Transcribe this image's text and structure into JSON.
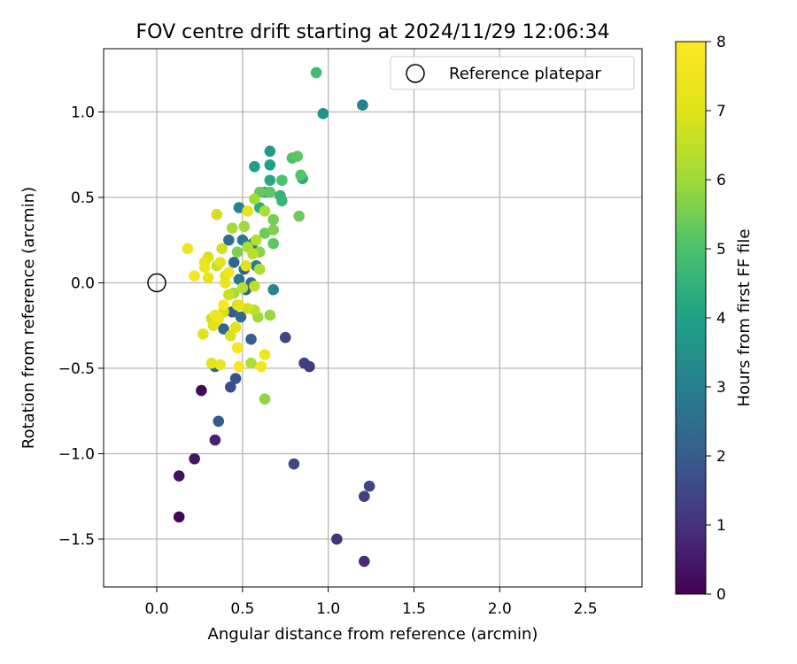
{
  "chart_data": {
    "type": "scatter",
    "title": "FOV centre drift starting at 2024/11/29 12:06:34",
    "xlabel": "Angular distance from reference (arcmin)",
    "ylabel": "Rotation from reference (arcmin)",
    "xlim": [
      -0.31,
      2.83
    ],
    "ylim": [
      -1.78,
      1.37
    ],
    "xticks": [
      0.0,
      0.5,
      1.0,
      1.5,
      2.0,
      2.5
    ],
    "xtick_labels": [
      "0.0",
      "0.5",
      "1.0",
      "1.5",
      "2.0",
      "2.5"
    ],
    "yticks": [
      -1.5,
      -1.0,
      -0.5,
      0.0,
      0.5,
      1.0
    ],
    "ytick_labels": [
      "−1.5",
      "−1.0",
      "−0.5",
      "0.0",
      "0.5",
      "1.0"
    ],
    "grid": true,
    "legend": {
      "position": "top-right",
      "entries": [
        "Reference platepar"
      ]
    },
    "reference_point": {
      "x": 0.0,
      "y": 0.0,
      "label": "Reference platepar"
    },
    "colorbar": {
      "label": "Hours from first FF file",
      "colormap": "viridis",
      "range": [
        0,
        8
      ],
      "ticks": [
        0,
        1,
        2,
        3,
        4,
        5,
        6,
        7,
        8
      ],
      "tick_labels": [
        "0",
        "1",
        "2",
        "3",
        "4",
        "5",
        "6",
        "7",
        "8"
      ]
    },
    "points": [
      {
        "x": 0.13,
        "y": -1.37,
        "t": 0.1
      },
      {
        "x": 0.13,
        "y": -1.13,
        "t": 0.3
      },
      {
        "x": 0.22,
        "y": -1.03,
        "t": 0.4
      },
      {
        "x": 0.26,
        "y": -0.63,
        "t": 0.2
      },
      {
        "x": 0.34,
        "y": -0.92,
        "t": 0.7
      },
      {
        "x": 1.05,
        "y": -1.5,
        "t": 1.0
      },
      {
        "x": 1.21,
        "y": -1.63,
        "t": 0.9
      },
      {
        "x": 1.21,
        "y": -1.25,
        "t": 1.3
      },
      {
        "x": 1.24,
        "y": -1.19,
        "t": 1.4
      },
      {
        "x": 0.8,
        "y": -1.06,
        "t": 1.5
      },
      {
        "x": 0.86,
        "y": -0.47,
        "t": 1.3
      },
      {
        "x": 0.89,
        "y": -0.49,
        "t": 1.2
      },
      {
        "x": 0.75,
        "y": -0.32,
        "t": 1.5
      },
      {
        "x": 0.43,
        "y": -0.61,
        "t": 1.7
      },
      {
        "x": 0.46,
        "y": -0.56,
        "t": 1.8
      },
      {
        "x": 0.36,
        "y": -0.81,
        "t": 2.0
      },
      {
        "x": 0.34,
        "y": -0.49,
        "t": 2.2
      },
      {
        "x": 0.55,
        "y": -0.33,
        "t": 2.1
      },
      {
        "x": 0.39,
        "y": -0.27,
        "t": 2.3
      },
      {
        "x": 0.49,
        "y": -0.2,
        "t": 2.4
      },
      {
        "x": 0.44,
        "y": -0.17,
        "t": 2.0
      },
      {
        "x": 0.52,
        "y": -0.04,
        "t": 2.3
      },
      {
        "x": 0.55,
        "y": 0.0,
        "t": 2.6
      },
      {
        "x": 0.48,
        "y": 0.02,
        "t": 2.7
      },
      {
        "x": 0.51,
        "y": 0.08,
        "t": 2.2
      },
      {
        "x": 0.45,
        "y": 0.12,
        "t": 2.4
      },
      {
        "x": 0.42,
        "y": 0.25,
        "t": 2.5
      },
      {
        "x": 0.5,
        "y": 0.25,
        "t": 2.8
      },
      {
        "x": 0.56,
        "y": 0.23,
        "t": 2.9
      },
      {
        "x": 0.48,
        "y": 0.44,
        "t": 3.1
      },
      {
        "x": 0.58,
        "y": 0.1,
        "t": 3.0
      },
      {
        "x": 0.68,
        "y": -0.04,
        "t": 3.2
      },
      {
        "x": 1.2,
        "y": 1.04,
        "t": 3.1
      },
      {
        "x": 0.97,
        "y": 0.99,
        "t": 3.6
      },
      {
        "x": 0.66,
        "y": 0.77,
        "t": 3.8
      },
      {
        "x": 0.57,
        "y": 0.68,
        "t": 3.9
      },
      {
        "x": 0.66,
        "y": 0.69,
        "t": 4.0
      },
      {
        "x": 0.66,
        "y": 0.6,
        "t": 4.2
      },
      {
        "x": 0.85,
        "y": 0.61,
        "t": 4.3
      },
      {
        "x": 0.63,
        "y": 0.53,
        "t": 4.4
      },
      {
        "x": 0.72,
        "y": 0.51,
        "t": 4.5
      },
      {
        "x": 0.73,
        "y": 0.48,
        "t": 4.6
      },
      {
        "x": 0.6,
        "y": 0.44,
        "t": 4.3
      },
      {
        "x": 0.93,
        "y": 1.23,
        "t": 4.8
      },
      {
        "x": 0.79,
        "y": 0.73,
        "t": 5.0
      },
      {
        "x": 0.82,
        "y": 0.74,
        "t": 5.2
      },
      {
        "x": 0.84,
        "y": 0.63,
        "t": 5.1
      },
      {
        "x": 0.73,
        "y": 0.6,
        "t": 5.0
      },
      {
        "x": 0.6,
        "y": 0.53,
        "t": 5.3
      },
      {
        "x": 0.66,
        "y": 0.53,
        "t": 5.2
      },
      {
        "x": 0.83,
        "y": 0.39,
        "t": 5.4
      },
      {
        "x": 0.68,
        "y": 0.37,
        "t": 5.5
      },
      {
        "x": 0.68,
        "y": 0.31,
        "t": 5.6
      },
      {
        "x": 0.63,
        "y": 0.29,
        "t": 5.4
      },
      {
        "x": 0.68,
        "y": 0.23,
        "t": 5.2
      },
      {
        "x": 0.6,
        "y": 0.18,
        "t": 5.7
      },
      {
        "x": 0.47,
        "y": 0.18,
        "t": 5.6
      },
      {
        "x": 0.57,
        "y": 0.49,
        "t": 6.0
      },
      {
        "x": 0.63,
        "y": 0.42,
        "t": 6.2
      },
      {
        "x": 0.51,
        "y": 0.33,
        "t": 6.0
      },
      {
        "x": 0.44,
        "y": 0.32,
        "t": 6.1
      },
      {
        "x": 0.58,
        "y": 0.25,
        "t": 6.3
      },
      {
        "x": 0.53,
        "y": 0.21,
        "t": 6.2
      },
      {
        "x": 0.56,
        "y": 0.17,
        "t": 6.4
      },
      {
        "x": 0.6,
        "y": 0.08,
        "t": 6.2
      },
      {
        "x": 0.57,
        "y": -0.02,
        "t": 6.5
      },
      {
        "x": 0.5,
        "y": -0.03,
        "t": 6.4
      },
      {
        "x": 0.45,
        "y": -0.06,
        "t": 6.1
      },
      {
        "x": 0.59,
        "y": -0.2,
        "t": 6.0
      },
      {
        "x": 0.66,
        "y": -0.19,
        "t": 5.9
      },
      {
        "x": 0.55,
        "y": -0.47,
        "t": 6.2
      },
      {
        "x": 0.63,
        "y": -0.68,
        "t": 5.8
      },
      {
        "x": 0.57,
        "y": -0.16,
        "t": 6.4
      },
      {
        "x": 0.47,
        "y": -0.13,
        "t": 6.6
      },
      {
        "x": 0.42,
        "y": -0.07,
        "t": 6.7
      },
      {
        "x": 0.53,
        "y": -0.15,
        "t": 6.8
      },
      {
        "x": 0.35,
        "y": 0.4,
        "t": 6.8
      },
      {
        "x": 0.3,
        "y": 0.15,
        "t": 6.9
      },
      {
        "x": 0.38,
        "y": 0.2,
        "t": 6.8
      },
      {
        "x": 0.35,
        "y": 0.1,
        "t": 6.6
      },
      {
        "x": 0.4,
        "y": 0.04,
        "t": 6.9
      },
      {
        "x": 0.32,
        "y": -0.21,
        "t": 6.7
      },
      {
        "x": 0.36,
        "y": -0.21,
        "t": 7.0
      },
      {
        "x": 0.39,
        "y": -0.17,
        "t": 6.8
      },
      {
        "x": 0.43,
        "y": -0.31,
        "t": 6.9
      },
      {
        "x": 0.27,
        "y": -0.3,
        "t": 7.0
      },
      {
        "x": 0.33,
        "y": -0.25,
        "t": 7.1
      },
      {
        "x": 0.46,
        "y": -0.26,
        "t": 7.0
      },
      {
        "x": 0.48,
        "y": -0.13,
        "t": 7.2
      },
      {
        "x": 0.53,
        "y": 0.42,
        "t": 7.3
      },
      {
        "x": 0.52,
        "y": 0.1,
        "t": 7.1
      },
      {
        "x": 0.28,
        "y": 0.12,
        "t": 7.2
      },
      {
        "x": 0.3,
        "y": 0.03,
        "t": 7.3
      },
      {
        "x": 0.37,
        "y": 0.12,
        "t": 7.2
      },
      {
        "x": 0.4,
        "y": 0.0,
        "t": 7.4
      },
      {
        "x": 0.32,
        "y": -0.47,
        "t": 7.3
      },
      {
        "x": 0.37,
        "y": -0.48,
        "t": 7.4
      },
      {
        "x": 0.63,
        "y": -0.42,
        "t": 7.5
      },
      {
        "x": 0.18,
        "y": 0.2,
        "t": 7.6
      },
      {
        "x": 0.22,
        "y": 0.04,
        "t": 7.7
      },
      {
        "x": 0.28,
        "y": 0.09,
        "t": 7.5
      },
      {
        "x": 0.42,
        "y": 0.06,
        "t": 7.6
      },
      {
        "x": 0.39,
        "y": -0.13,
        "t": 7.9
      },
      {
        "x": 0.47,
        "y": -0.38,
        "t": 7.8
      },
      {
        "x": 0.48,
        "y": -0.49,
        "t": 7.9
      },
      {
        "x": 0.61,
        "y": -0.49,
        "t": 7.7
      },
      {
        "x": 0.36,
        "y": -0.2,
        "t": 7.5
      },
      {
        "x": 0.34,
        "y": -0.19,
        "t": 7.6
      }
    ]
  }
}
